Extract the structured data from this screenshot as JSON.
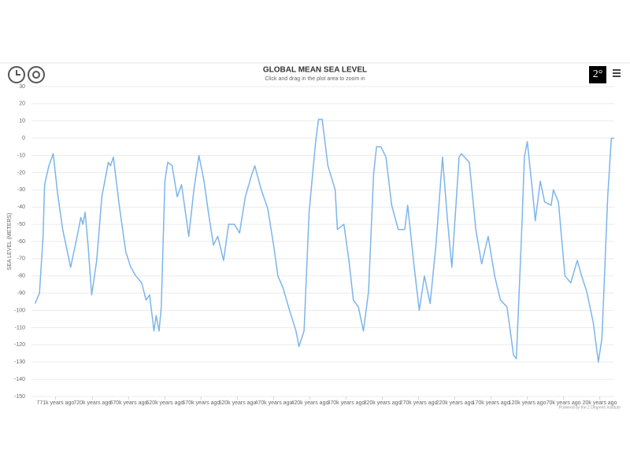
{
  "chart_data": {
    "type": "line",
    "title": "GLOBAL MEAN SEA LEVEL",
    "subtitle": "Click and drag in the plot area to zoom in",
    "y_label": "SEA LEVEL (METERS)",
    "credits": "Powered by the 2 Degrees Institute",
    "x": [
      799,
      793,
      788,
      786,
      780,
      774,
      768,
      761,
      750,
      741,
      736,
      733,
      730,
      726,
      721,
      714,
      707,
      698,
      695,
      691,
      683,
      674,
      667,
      660,
      652,
      646,
      641,
      635,
      632,
      628,
      625,
      620,
      616,
      610,
      603,
      597,
      590,
      587,
      580,
      573,
      566,
      560,
      553,
      547,
      539,
      532,
      524,
      517,
      509,
      500,
      496,
      487,
      478,
      470,
      464,
      457,
      448,
      439,
      435,
      428,
      421,
      412,
      408,
      403,
      395,
      385,
      382,
      373,
      366,
      360,
      353,
      346,
      339,
      332,
      328,
      322,
      315,
      307,
      298,
      289,
      285,
      276,
      269,
      262,
      254,
      246,
      237,
      230,
      224,
      214,
      211,
      200,
      191,
      183,
      174,
      165,
      157,
      148,
      139,
      135,
      128,
      124,
      120,
      112,
      109,
      102,
      96,
      87,
      84,
      77,
      68,
      60,
      51,
      45,
      38,
      29,
      22,
      17,
      9,
      4,
      0
    ],
    "series": [
      {
        "name": "Sea level",
        "color": "#7cb5ec",
        "values": [
          -96,
          -90,
          -57,
          -27,
          -16,
          -9,
          -32,
          -53,
          -75,
          -57,
          -46,
          -50,
          -43,
          -62,
          -91,
          -71,
          -34,
          -14,
          -16,
          -11,
          -39,
          -66,
          -75,
          -80,
          -84,
          -94,
          -91,
          -112,
          -103,
          -112,
          -98,
          -25,
          -14,
          -16,
          -34,
          -27,
          -48,
          -57,
          -30,
          -10,
          -25,
          -43,
          -62,
          -57,
          -71,
          -50,
          -50,
          -55,
          -34,
          -21,
          -16,
          -30,
          -41,
          -62,
          -80,
          -87,
          -100,
          -112,
          -121,
          -112,
          -43,
          -2,
          11,
          11,
          -16,
          -30,
          -53,
          -50,
          -71,
          -94,
          -98,
          -112,
          -89,
          -21,
          -5,
          -5,
          -11,
          -39,
          -53,
          -53,
          -39,
          -75,
          -100,
          -80,
          -96,
          -62,
          -11,
          -48,
          -75,
          -11,
          -9,
          -14,
          -53,
          -73,
          -57,
          -80,
          -94,
          -98,
          -126,
          -128,
          -57,
          -11,
          -2,
          -34,
          -48,
          -25,
          -37,
          -39,
          -30,
          -37,
          -80,
          -84,
          -71,
          -80,
          -89,
          -107,
          -130,
          -116,
          -34,
          0,
          0
        ]
      }
    ],
    "xlim": [
      804,
      0
    ],
    "xticks": [
      {
        "value": 771,
        "label": "771k years ago"
      },
      {
        "value": 720,
        "label": "720k years ago"
      },
      {
        "value": 670,
        "label": "670k years ago"
      },
      {
        "value": 620,
        "label": "620k years ago"
      },
      {
        "value": 570,
        "label": "570k years ago"
      },
      {
        "value": 520,
        "label": "520k years ago"
      },
      {
        "value": 470,
        "label": "470k years ago"
      },
      {
        "value": 420,
        "label": "420k years ago"
      },
      {
        "value": 370,
        "label": "370k years ago"
      },
      {
        "value": 320,
        "label": "320k years ago"
      },
      {
        "value": 270,
        "label": "270k years ago"
      },
      {
        "value": 220,
        "label": "220k years ago"
      },
      {
        "value": 170,
        "label": "170k years ago"
      },
      {
        "value": 120,
        "label": "120k years ago"
      },
      {
        "value": 70,
        "label": "70k years ago"
      },
      {
        "value": 20,
        "label": "20k years ago"
      }
    ],
    "ylim": [
      -150,
      30
    ],
    "yticks": [
      30,
      20,
      10,
      0,
      -10,
      -20,
      -30,
      -40,
      -50,
      -60,
      -70,
      -80,
      -90,
      -100,
      -110,
      -120,
      -130,
      -140,
      -150
    ],
    "grid": true
  },
  "logo": "2°"
}
